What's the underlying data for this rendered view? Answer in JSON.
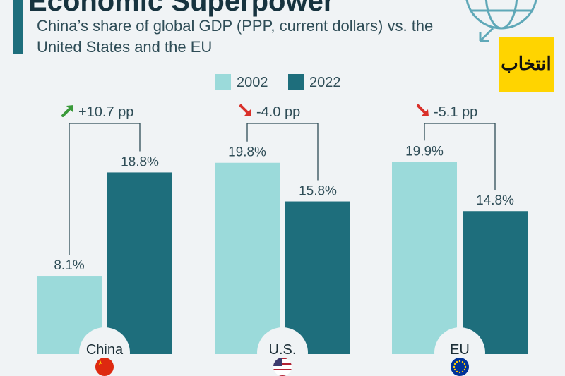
{
  "header": {
    "headline": "Economic Superpower",
    "subtitle": "China’s share of global GDP (PPP, current dollars) vs. the United States and the EU"
  },
  "logo": {
    "text": "انتخاب",
    "color": "#ffd400"
  },
  "icons": {
    "globe": "globe-icon",
    "arrow_up": "arrow-up-right-icon",
    "arrow_down": "arrow-down-right-icon"
  },
  "colors": {
    "series_2002": "#9bdada",
    "series_2022": "#1e6e7c",
    "up": "#3a9a3a",
    "down": "#d9302a"
  },
  "chart_data": {
    "type": "bar",
    "categories": [
      "China",
      "U.S.",
      "EU"
    ],
    "series": [
      {
        "name": "2002",
        "values": [
          8.1,
          19.8,
          19.9
        ],
        "labels": [
          "8.1%",
          "19.8%",
          "19.9%"
        ]
      },
      {
        "name": "2022",
        "values": [
          18.8,
          15.8,
          14.8
        ],
        "labels": [
          "18.8%",
          "15.8%",
          "14.8%"
        ]
      }
    ],
    "changes": [
      {
        "text": "+10.7 pp",
        "direction": "up"
      },
      {
        "text": "-4.0 pp",
        "direction": "down"
      },
      {
        "text": "-5.1 pp",
        "direction": "down"
      }
    ],
    "flags": [
      "china-flag-icon",
      "us-flag-icon",
      "eu-flag-icon"
    ],
    "legend_position": "top-center",
    "grid": false,
    "ylim": [
      0,
      22
    ]
  }
}
